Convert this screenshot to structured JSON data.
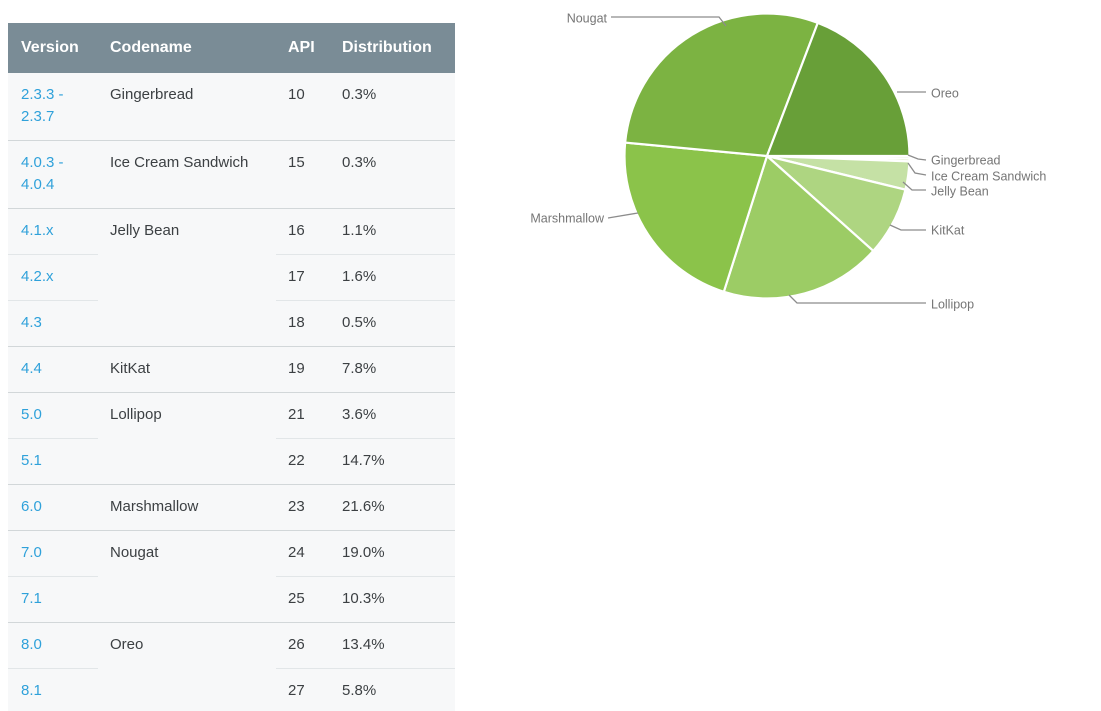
{
  "table": {
    "columns": [
      "Version",
      "Codename",
      "API",
      "Distribution"
    ],
    "rows": [
      {
        "version": "2.3.3 - 2.3.7",
        "codename": "Gingerbread",
        "rowspan": 1,
        "api": "10",
        "distribution": "0.3%"
      },
      {
        "version": "4.0.3 - 4.0.4",
        "codename": "Ice Cream Sandwich",
        "rowspan": 1,
        "api": "15",
        "distribution": "0.3%"
      },
      {
        "version": "4.1.x",
        "codename": "Jelly Bean",
        "rowspan": 3,
        "api": "16",
        "distribution": "1.1%"
      },
      {
        "version": "4.2.x",
        "codename": null,
        "rowspan": 0,
        "api": "17",
        "distribution": "1.6%"
      },
      {
        "version": "4.3",
        "codename": null,
        "rowspan": 0,
        "api": "18",
        "distribution": "0.5%"
      },
      {
        "version": "4.4",
        "codename": "KitKat",
        "rowspan": 1,
        "api": "19",
        "distribution": "7.8%"
      },
      {
        "version": "5.0",
        "codename": "Lollipop",
        "rowspan": 2,
        "api": "21",
        "distribution": "3.6%"
      },
      {
        "version": "5.1",
        "codename": null,
        "rowspan": 0,
        "api": "22",
        "distribution": "14.7%"
      },
      {
        "version": "6.0",
        "codename": "Marshmallow",
        "rowspan": 1,
        "api": "23",
        "distribution": "21.6%"
      },
      {
        "version": "7.0",
        "codename": "Nougat",
        "rowspan": 2,
        "api": "24",
        "distribution": "19.0%"
      },
      {
        "version": "7.1",
        "codename": null,
        "rowspan": 0,
        "api": "25",
        "distribution": "10.3%"
      },
      {
        "version": "8.0",
        "codename": "Oreo",
        "rowspan": 2,
        "api": "26",
        "distribution": "13.4%"
      },
      {
        "version": "8.1",
        "codename": null,
        "rowspan": 0,
        "api": "27",
        "distribution": "5.8%"
      }
    ]
  },
  "chart_data": {
    "type": "pie",
    "title": "",
    "legend_position": "outside-callout-labels",
    "start_angle_deg": 90,
    "direction": "clockwise",
    "slices": [
      {
        "label": "Gingerbread",
        "value": 0.3,
        "color": "#DCEDC8"
      },
      {
        "label": "Ice Cream Sandwich",
        "value": 0.3,
        "color": "#CFE5AF"
      },
      {
        "label": "Jelly Bean",
        "value": 3.2,
        "color": "#C5E1A5"
      },
      {
        "label": "KitKat",
        "value": 7.8,
        "color": "#AED581"
      },
      {
        "label": "Lollipop",
        "value": 18.3,
        "color": "#9CCC65"
      },
      {
        "label": "Marshmallow",
        "value": 21.6,
        "color": "#8BC34A"
      },
      {
        "label": "Nougat",
        "value": 29.3,
        "color": "#7CB342"
      },
      {
        "label": "Oreo",
        "value": 19.2,
        "color": "#689F38"
      }
    ]
  },
  "colors": {
    "header_bg": "#7A8C96",
    "header_text": "#FFFFFF",
    "link_blue": "#2FA1DA",
    "row_bg": "#F7F8F9",
    "body_text": "#3C4043",
    "pie_label_text": "#757575",
    "leader_line": "#8C8C8C",
    "slice_border": "#FFFFFF"
  }
}
